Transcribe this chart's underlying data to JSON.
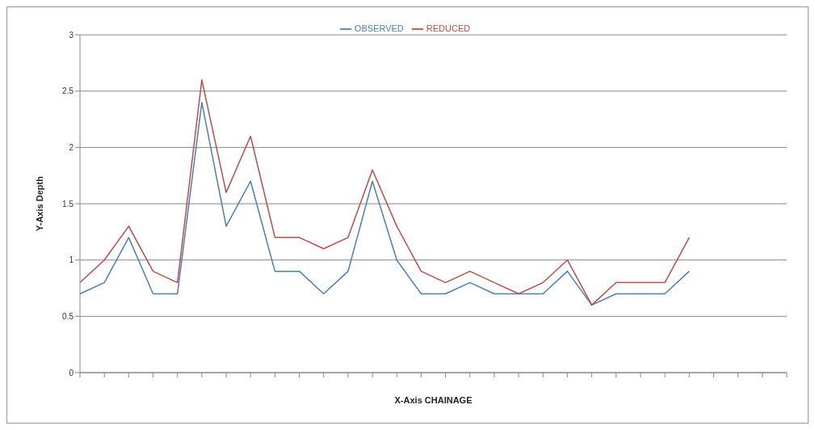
{
  "chart_data": {
    "type": "line",
    "xlabel": "X-Axis CHAINAGE",
    "ylabel": "Y-Axis Depth",
    "categories": [
      null,
      null,
      null,
      null,
      null,
      null,
      null,
      null,
      null,
      null,
      null,
      null,
      null,
      null,
      null,
      null,
      null,
      null,
      null,
      null,
      null,
      null,
      null,
      null,
      null,
      null,
      null,
      null,
      null,
      null
    ],
    "series": [
      {
        "name": "OBSERVED",
        "color": "#4a7ebb",
        "values": [
          0.7,
          0.8,
          1.2,
          0.7,
          0.7,
          2.4,
          1.3,
          1.7,
          0.9,
          0.9,
          0.7,
          0.9,
          1.7,
          1.0,
          0.7,
          0.7,
          0.8,
          0.7,
          0.7,
          0.7,
          0.9,
          0.6,
          0.7,
          0.7,
          0.7,
          0.9,
          null,
          null,
          null,
          null
        ]
      },
      {
        "name": "REDUCED",
        "color": "#be4b48",
        "values": [
          0.8,
          1.0,
          1.3,
          0.9,
          0.8,
          2.6,
          1.6,
          2.1,
          1.2,
          1.2,
          1.1,
          1.2,
          1.8,
          1.3,
          0.9,
          0.8,
          0.9,
          0.8,
          0.7,
          0.8,
          1.0,
          0.6,
          0.8,
          0.8,
          0.8,
          1.2,
          null,
          null,
          null,
          null
        ]
      }
    ],
    "ylim": [
      0,
      3
    ],
    "yticks": [
      0,
      0.5,
      1,
      1.5,
      2,
      2.5,
      3
    ],
    "grid": "y",
    "legend": "top",
    "marker": "none",
    "line_style": "solid"
  }
}
